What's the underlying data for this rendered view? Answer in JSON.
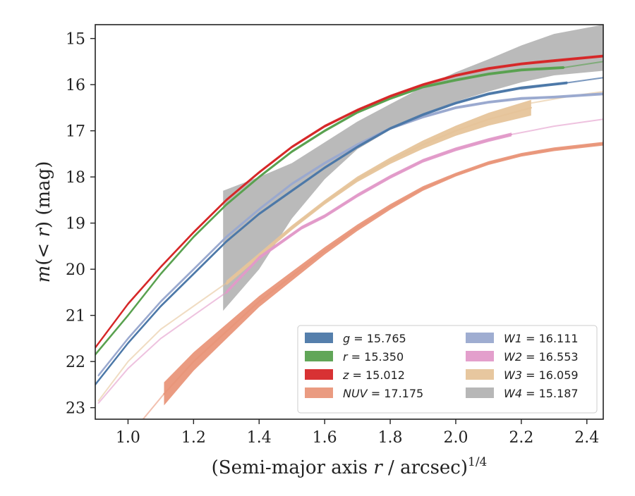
{
  "chart_data": {
    "type": "line",
    "title": "",
    "xlabel": "(Semi-major axis r / arcsec)^(1/4)",
    "ylabel": "m(< r) (mag)",
    "xlim": [
      0.9,
      2.45
    ],
    "ylim": [
      23.25,
      14.7
    ],
    "y_inverted": true,
    "x_ticks": [
      "1.0",
      "1.2",
      "1.4",
      "1.6",
      "1.8",
      "2.0",
      "2.2",
      "2.4"
    ],
    "x_tick_values": [
      1.0,
      1.2,
      1.4,
      1.6,
      1.8,
      2.0,
      2.2,
      2.4
    ],
    "y_ticks": [
      "15",
      "16",
      "17",
      "18",
      "19",
      "20",
      "21",
      "22",
      "23"
    ],
    "y_tick_values": [
      15,
      16,
      17,
      18,
      19,
      20,
      21,
      22,
      23
    ],
    "grid": false,
    "legend_position": "lower-right",
    "legend_columns": 2,
    "series": [
      {
        "name": "g = 15.765",
        "color": "#4c78a8",
        "points": [
          [
            0.9,
            22.5
          ],
          [
            1.0,
            21.6
          ],
          [
            1.1,
            20.8
          ],
          [
            1.2,
            20.1
          ],
          [
            1.3,
            19.4
          ],
          [
            1.4,
            18.8
          ],
          [
            1.5,
            18.3
          ],
          [
            1.6,
            17.8
          ],
          [
            1.7,
            17.35
          ],
          [
            1.8,
            16.95
          ],
          [
            1.9,
            16.65
          ],
          [
            2.0,
            16.4
          ],
          [
            2.1,
            16.2
          ],
          [
            2.2,
            16.07
          ],
          [
            2.34,
            15.96
          ]
        ],
        "band_width": [
          0.03,
          0.03,
          0.03,
          0.03,
          0.03,
          0.03,
          0.03,
          0.03,
          0.03,
          0.03,
          0.03,
          0.03,
          0.03,
          0.03,
          0.03
        ],
        "extension": [
          [
            2.34,
            15.96
          ],
          [
            2.45,
            15.85
          ]
        ]
      },
      {
        "name": "r = 15.350",
        "color": "#59a14f",
        "points": [
          [
            0.9,
            21.85
          ],
          [
            1.0,
            21.0
          ],
          [
            1.1,
            20.1
          ],
          [
            1.2,
            19.3
          ],
          [
            1.3,
            18.6
          ],
          [
            1.4,
            18.0
          ],
          [
            1.5,
            17.45
          ],
          [
            1.6,
            17.0
          ],
          [
            1.7,
            16.6
          ],
          [
            1.8,
            16.3
          ],
          [
            1.9,
            16.05
          ],
          [
            2.0,
            15.9
          ],
          [
            2.1,
            15.77
          ],
          [
            2.2,
            15.68
          ],
          [
            2.33,
            15.63
          ]
        ],
        "band_width": [
          0.03,
          0.03,
          0.03,
          0.03,
          0.03,
          0.03,
          0.03,
          0.03,
          0.03,
          0.03,
          0.03,
          0.03,
          0.03,
          0.03,
          0.03
        ],
        "extension": [
          [
            2.33,
            15.63
          ],
          [
            2.45,
            15.5
          ]
        ]
      },
      {
        "name": "z = 15.012",
        "color": "#d62728",
        "points": [
          [
            0.9,
            21.7
          ],
          [
            1.0,
            20.75
          ],
          [
            1.1,
            19.95
          ],
          [
            1.2,
            19.2
          ],
          [
            1.3,
            18.5
          ],
          [
            1.4,
            17.9
          ],
          [
            1.5,
            17.35
          ],
          [
            1.6,
            16.9
          ],
          [
            1.7,
            16.55
          ],
          [
            1.8,
            16.25
          ],
          [
            1.9,
            16.0
          ],
          [
            2.0,
            15.8
          ],
          [
            2.1,
            15.65
          ],
          [
            2.2,
            15.55
          ],
          [
            2.3,
            15.48
          ],
          [
            2.45,
            15.38
          ]
        ],
        "band_width": [
          0.03,
          0.03,
          0.03,
          0.03,
          0.03,
          0.03,
          0.03,
          0.03,
          0.03,
          0.03,
          0.03,
          0.03,
          0.03,
          0.03,
          0.03,
          0.03
        ],
        "extension": []
      },
      {
        "name": "NUV = 17.175",
        "color": "#e9967a",
        "points": [
          [
            1.11,
            22.7
          ],
          [
            1.2,
            22.0
          ],
          [
            1.3,
            21.35
          ],
          [
            1.4,
            20.7
          ],
          [
            1.5,
            20.15
          ],
          [
            1.6,
            19.6
          ],
          [
            1.7,
            19.1
          ],
          [
            1.8,
            18.65
          ],
          [
            1.9,
            18.25
          ],
          [
            2.0,
            17.95
          ],
          [
            2.1,
            17.7
          ],
          [
            2.2,
            17.52
          ],
          [
            2.3,
            17.4
          ],
          [
            2.45,
            17.28
          ]
        ],
        "band_width": [
          0.25,
          0.2,
          0.16,
          0.12,
          0.1,
          0.08,
          0.07,
          0.06,
          0.05,
          0.04,
          0.04,
          0.04,
          0.04,
          0.04
        ],
        "extension": [
          [
            1.04,
            23.3
          ],
          [
            1.11,
            22.7
          ]
        ]
      },
      {
        "name": "W1 = 16.111",
        "color": "#9aa9cf",
        "points": [
          [
            0.91,
            22.3
          ],
          [
            1.0,
            21.5
          ],
          [
            1.1,
            20.7
          ],
          [
            1.2,
            20.0
          ],
          [
            1.3,
            19.3
          ],
          [
            1.4,
            18.7
          ],
          [
            1.5,
            18.15
          ],
          [
            1.6,
            17.7
          ],
          [
            1.7,
            17.3
          ],
          [
            1.8,
            16.95
          ],
          [
            1.9,
            16.7
          ],
          [
            2.0,
            16.5
          ],
          [
            2.1,
            16.38
          ],
          [
            2.2,
            16.3
          ],
          [
            2.3,
            16.27
          ],
          [
            2.45,
            16.2
          ]
        ],
        "band_width": [
          0.03,
          0.03,
          0.03,
          0.03,
          0.03,
          0.03,
          0.03,
          0.03,
          0.03,
          0.03,
          0.03,
          0.03,
          0.03,
          0.03,
          0.03,
          0.03
        ],
        "extension": [
          [
            2.2,
            16.1
          ],
          [
            2.45,
            15.85
          ]
        ]
      },
      {
        "name": "W2 = 16.553",
        "color": "#e29ac9",
        "points": [
          [
            1.3,
            20.5
          ],
          [
            1.4,
            19.75
          ],
          [
            1.53,
            19.1
          ],
          [
            1.6,
            18.85
          ],
          [
            1.7,
            18.4
          ],
          [
            1.8,
            18.0
          ],
          [
            1.9,
            17.65
          ],
          [
            2.0,
            17.4
          ],
          [
            2.1,
            17.2
          ],
          [
            2.17,
            17.08
          ]
        ],
        "band_width": [
          0.04,
          0.04,
          0.04,
          0.04,
          0.04,
          0.04,
          0.04,
          0.04,
          0.04,
          0.04
        ],
        "extension": [
          [
            0.91,
            22.9
          ],
          [
            1.0,
            22.15
          ],
          [
            1.1,
            21.5
          ],
          [
            1.2,
            21.0
          ],
          [
            1.3,
            20.5
          ]
        ],
        "extension2": [
          [
            2.17,
            17.08
          ],
          [
            2.3,
            16.9
          ],
          [
            2.45,
            16.75
          ]
        ]
      },
      {
        "name": "W3 = 16.059",
        "color": "#e6c49a",
        "points": [
          [
            1.3,
            20.3
          ],
          [
            1.4,
            19.7
          ],
          [
            1.5,
            19.1
          ],
          [
            1.6,
            18.55
          ],
          [
            1.7,
            18.05
          ],
          [
            1.8,
            17.65
          ],
          [
            1.9,
            17.3
          ],
          [
            2.0,
            17.0
          ],
          [
            2.1,
            16.75
          ],
          [
            2.23,
            16.5
          ]
        ],
        "band_width": [
          0.05,
          0.05,
          0.05,
          0.05,
          0.06,
          0.07,
          0.09,
          0.11,
          0.14,
          0.17
        ],
        "extension": [
          [
            0.91,
            22.85
          ],
          [
            1.0,
            22.0
          ],
          [
            1.1,
            21.3
          ],
          [
            1.2,
            20.8
          ],
          [
            1.3,
            20.3
          ]
        ],
        "extension2": [
          [
            2.23,
            16.4
          ],
          [
            2.35,
            16.25
          ],
          [
            2.45,
            16.15
          ]
        ]
      },
      {
        "name": "W4 = 15.187",
        "color": "#b3b3b3",
        "points": [
          [
            1.29,
            19.6
          ],
          [
            1.4,
            19.0
          ],
          [
            1.5,
            18.3
          ],
          [
            1.6,
            17.65
          ],
          [
            1.7,
            17.1
          ],
          [
            1.8,
            16.7
          ],
          [
            1.9,
            16.35
          ],
          [
            2.0,
            16.05
          ],
          [
            2.1,
            15.8
          ],
          [
            2.2,
            15.55
          ],
          [
            2.3,
            15.35
          ],
          [
            2.45,
            15.2
          ]
        ],
        "band_width": [
          1.3,
          1.0,
          0.6,
          0.4,
          0.3,
          0.28,
          0.3,
          0.32,
          0.35,
          0.4,
          0.45,
          0.5
        ],
        "extension": []
      }
    ]
  }
}
